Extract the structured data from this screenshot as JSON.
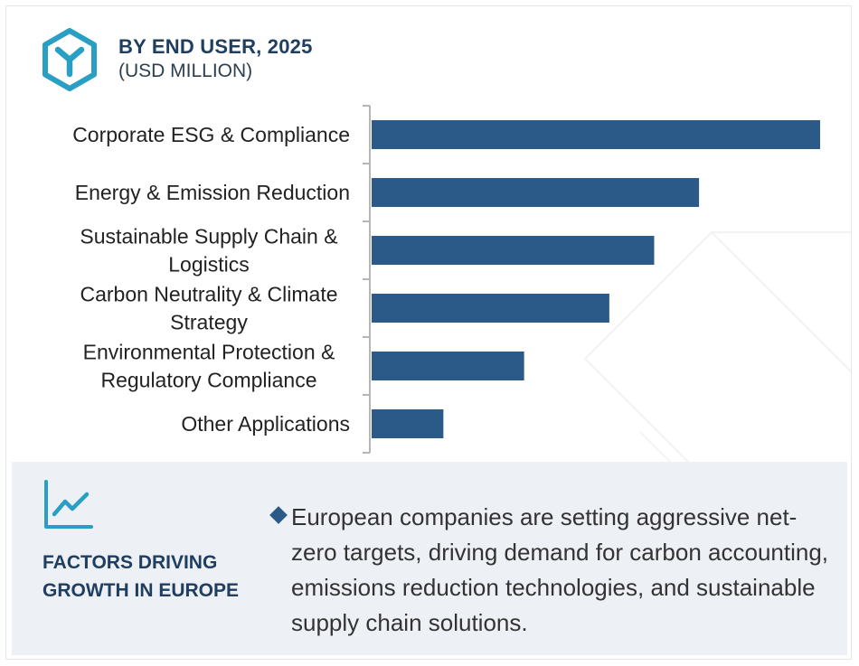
{
  "header": {
    "title": "BY END USER, 2025",
    "subtitle": "(USD MILLION)",
    "logo_icon": "cube-y-logo-icon"
  },
  "colors": {
    "bar": "#2c5a88",
    "accent": "#2a9fc4",
    "title": "#1f3e60",
    "panel_bg": "#edf1f6"
  },
  "chart_data": {
    "type": "bar",
    "orientation": "horizontal",
    "title": "BY END USER, 2025",
    "subtitle": "(USD MILLION)",
    "categories": [
      [
        "Corporate ESG & Compliance"
      ],
      [
        "Energy & Emission Reduction"
      ],
      [
        "Sustainable Supply Chain &",
        "Logistics"
      ],
      [
        "Carbon Neutrality & Climate",
        "Strategy"
      ],
      [
        "Environmental Protection &",
        "Regulatory Compliance"
      ],
      [
        "Other Applications"
      ]
    ],
    "values": [
      100,
      73,
      63,
      53,
      34,
      16
    ],
    "value_scale": "relative (no value axis printed)",
    "xlim": [
      0,
      100
    ],
    "grid": false,
    "legend": "none"
  },
  "factors": {
    "icon": "growth-chart-icon",
    "title": "FACTORS DRIVING GROWTH IN EUROPE",
    "bullet_icon": "diamond-bullet-icon",
    "text": "European companies are setting aggressive net-zero targets, driving demand for carbon accounting, emissions reduction technologies, and sustainable supply chain solutions."
  }
}
